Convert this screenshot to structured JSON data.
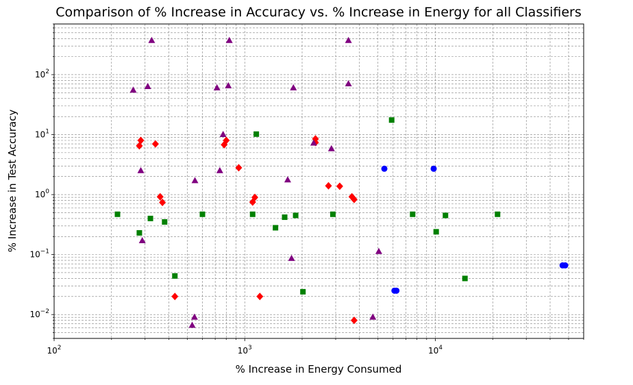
{
  "chart_data": {
    "type": "scatter",
    "title": "Comparison of % Increase in Accuracy vs. % Increase in Energy for all Classifiers",
    "xlabel": "% Increase in Energy Consumed",
    "ylabel": "% Increase in Test Accuracy",
    "xscale": "log",
    "yscale": "log",
    "xlim": [
      100,
      60000
    ],
    "ylim": [
      0.004,
      700
    ],
    "grid": "major and minor, dashed, gray",
    "x_ticks": [
      {
        "value": 100,
        "base": "10",
        "exp": "2"
      },
      {
        "value": 1000,
        "base": "10",
        "exp": "3"
      },
      {
        "value": 10000,
        "base": "10",
        "exp": "4"
      }
    ],
    "y_ticks": [
      {
        "value": 0.01,
        "base": "10",
        "exp": "−2"
      },
      {
        "value": 0.1,
        "base": "10",
        "exp": "−1"
      },
      {
        "value": 1,
        "base": "10",
        "exp": "0"
      },
      {
        "value": 10,
        "base": "10",
        "exp": "1"
      },
      {
        "value": 100,
        "base": "10",
        "exp": "2"
      }
    ],
    "series": [
      {
        "marker": "circle",
        "color": "#0000ff",
        "points": [
          [
            5400,
            2.7
          ],
          [
            9800,
            2.7
          ],
          [
            6100,
            0.025
          ],
          [
            6250,
            0.025
          ],
          [
            46500,
            0.066
          ],
          [
            48000,
            0.066
          ]
        ]
      },
      {
        "marker": "square",
        "color": "#008000",
        "points": [
          [
            215,
            0.47
          ],
          [
            280,
            0.23
          ],
          [
            320,
            0.4
          ],
          [
            380,
            0.35
          ],
          [
            430,
            0.044
          ],
          [
            600,
            0.47
          ],
          [
            1100,
            0.47
          ],
          [
            1150,
            10.2
          ],
          [
            1450,
            0.28
          ],
          [
            1620,
            0.42
          ],
          [
            1850,
            0.45
          ],
          [
            2020,
            0.024
          ],
          [
            2900,
            0.47
          ],
          [
            5900,
            17.5
          ],
          [
            7600,
            0.47
          ],
          [
            10100,
            0.24
          ],
          [
            11300,
            0.45
          ],
          [
            14300,
            0.04
          ],
          [
            21200,
            0.47
          ]
        ]
      },
      {
        "marker": "diamond",
        "color": "#ff0000",
        "points": [
          [
            280,
            6.5
          ],
          [
            285,
            8.0
          ],
          [
            340,
            7.0
          ],
          [
            360,
            0.92
          ],
          [
            370,
            0.74
          ],
          [
            430,
            0.02
          ],
          [
            780,
            6.8
          ],
          [
            800,
            8.0
          ],
          [
            930,
            2.8
          ],
          [
            1100,
            0.75
          ],
          [
            1130,
            0.9
          ],
          [
            1200,
            0.02
          ],
          [
            2350,
            8.5
          ],
          [
            2350,
            7.4
          ],
          [
            2750,
            1.4
          ],
          [
            3150,
            1.38
          ],
          [
            3650,
            0.92
          ],
          [
            3750,
            0.83
          ],
          [
            3750,
            0.008
          ]
        ]
      },
      {
        "marker": "triangle",
        "color": "#800080",
        "points": [
          [
            260,
            55
          ],
          [
            285,
            2.5
          ],
          [
            290,
            0.17
          ],
          [
            310,
            63
          ],
          [
            325,
            370
          ],
          [
            530,
            0.0066
          ],
          [
            545,
            0.009
          ],
          [
            548,
            1.7
          ],
          [
            715,
            60
          ],
          [
            740,
            2.5
          ],
          [
            770,
            10.0
          ],
          [
            820,
            65
          ],
          [
            830,
            370
          ],
          [
            1680,
            1.75
          ],
          [
            1760,
            0.086
          ],
          [
            1800,
            60
          ],
          [
            2300,
            7.2
          ],
          [
            2850,
            5.8
          ],
          [
            3500,
            370
          ],
          [
            3500,
            70
          ],
          [
            4700,
            0.009
          ],
          [
            5050,
            0.112
          ]
        ]
      }
    ]
  }
}
